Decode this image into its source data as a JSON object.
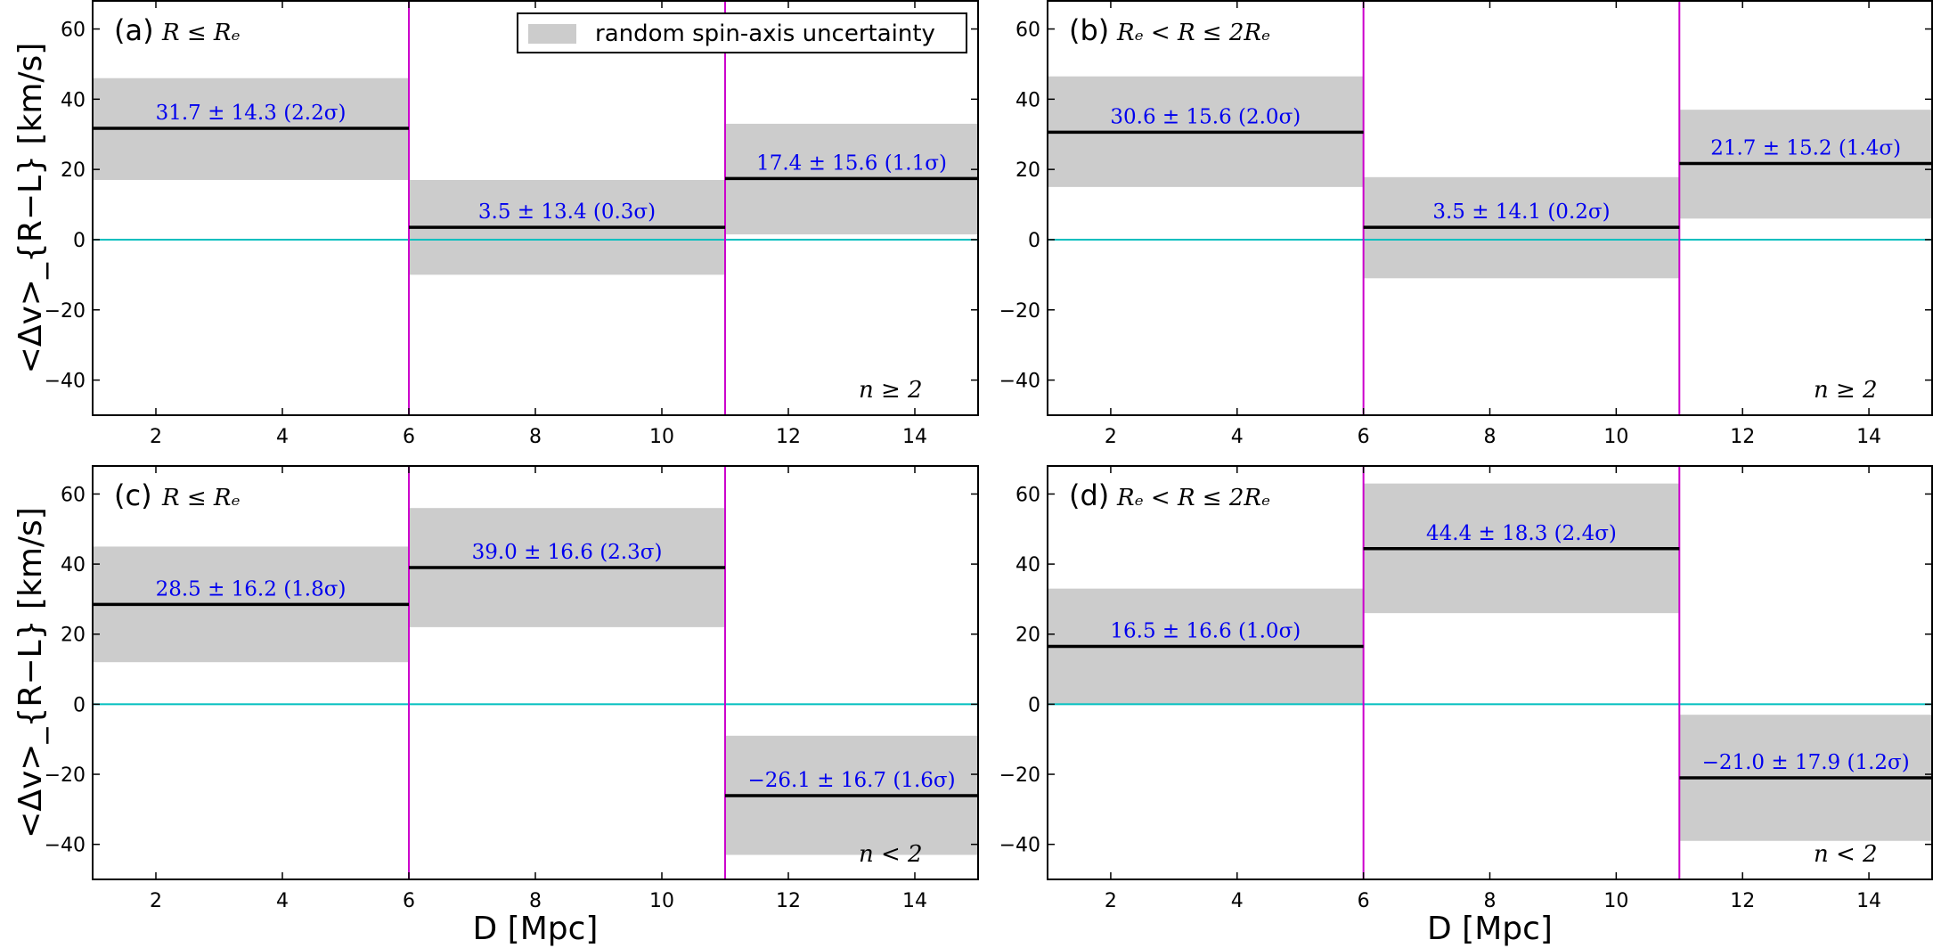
{
  "chart_data": [
    {
      "type": "bar",
      "panel": "(a)",
      "condition": "R ≤ Rₑ",
      "sample": "n ≥ 2",
      "xlim": [
        1,
        15
      ],
      "ylim": [
        -50,
        68
      ],
      "xticks": [
        2,
        4,
        6,
        8,
        10,
        12,
        14
      ],
      "yticks": [
        -40,
        -20,
        0,
        20,
        40,
        60
      ],
      "xlabel": "",
      "ylabel": "<Δv>_{R−L} [km/s]",
      "legend_label": "random spin-axis uncertainty",
      "legend_position": "top-right",
      "bin_edges": [
        6,
        11
      ],
      "bins": [
        {
          "x0": 1,
          "x1": 6,
          "value": 31.7,
          "band": [
            17.0,
            46.0
          ],
          "label": "31.7 ± 14.3 (2.2σ)"
        },
        {
          "x0": 6,
          "x1": 11,
          "value": 3.5,
          "band": [
            -10.0,
            17.0
          ],
          "label": "3.5 ± 13.4 (0.3σ)"
        },
        {
          "x0": 11,
          "x1": 15,
          "value": 17.4,
          "band": [
            1.5,
            33.0
          ],
          "label": "17.4 ± 15.6 (1.1σ)"
        }
      ]
    },
    {
      "type": "bar",
      "panel": "(b)",
      "condition": "Rₑ < R ≤ 2Rₑ",
      "sample": "n ≥ 2",
      "xlim": [
        1,
        15
      ],
      "ylim": [
        -50,
        68
      ],
      "xticks": [
        2,
        4,
        6,
        8,
        10,
        12,
        14
      ],
      "yticks": [
        -40,
        -20,
        0,
        20,
        40,
        60
      ],
      "xlabel": "",
      "ylabel": "",
      "bin_edges": [
        6,
        11
      ],
      "bins": [
        {
          "x0": 1,
          "x1": 6,
          "value": 30.6,
          "band": [
            15.0,
            46.5
          ],
          "label": "30.6 ± 15.6 (2.0σ)"
        },
        {
          "x0": 6,
          "x1": 11,
          "value": 3.5,
          "band": [
            -11.0,
            17.8
          ],
          "label": "3.5 ± 14.1 (0.2σ)"
        },
        {
          "x0": 11,
          "x1": 15,
          "value": 21.7,
          "band": [
            6.0,
            37.0
          ],
          "label": "21.7 ± 15.2 (1.4σ)"
        }
      ]
    },
    {
      "type": "bar",
      "panel": "(c)",
      "condition": "R ≤ Rₑ",
      "sample": "n < 2",
      "xlim": [
        1,
        15
      ],
      "ylim": [
        -50,
        68
      ],
      "xticks": [
        2,
        4,
        6,
        8,
        10,
        12,
        14
      ],
      "yticks": [
        -40,
        -20,
        0,
        20,
        40,
        60
      ],
      "xlabel": "D [Mpc]",
      "ylabel": "<Δv>_{R−L} [km/s]",
      "bin_edges": [
        6,
        11
      ],
      "bins": [
        {
          "x0": 1,
          "x1": 6,
          "value": 28.5,
          "band": [
            12.0,
            45.0
          ],
          "label": "28.5 ± 16.2 (1.8σ)"
        },
        {
          "x0": 6,
          "x1": 11,
          "value": 39.0,
          "band": [
            22.0,
            56.0
          ],
          "label": "39.0 ± 16.6 (2.3σ)"
        },
        {
          "x0": 11,
          "x1": 15,
          "value": -26.1,
          "band": [
            -43.0,
            -9.0
          ],
          "label": "−26.1 ± 16.7 (1.6σ)"
        }
      ]
    },
    {
      "type": "bar",
      "panel": "(d)",
      "condition": "Rₑ < R ≤ 2Rₑ",
      "sample": "n < 2",
      "xlim": [
        1,
        15
      ],
      "ylim": [
        -50,
        68
      ],
      "xticks": [
        2,
        4,
        6,
        8,
        10,
        12,
        14
      ],
      "yticks": [
        -40,
        -20,
        0,
        20,
        40,
        60
      ],
      "xlabel": "D [Mpc]",
      "ylabel": "",
      "bin_edges": [
        6,
        11
      ],
      "bins": [
        {
          "x0": 1,
          "x1": 6,
          "value": 16.5,
          "band": [
            0.0,
            33.0
          ],
          "label": "16.5 ± 16.6 (1.0σ)"
        },
        {
          "x0": 6,
          "x1": 11,
          "value": 44.4,
          "band": [
            26.0,
            63.0
          ],
          "label": "44.4 ± 18.3 (2.4σ)"
        },
        {
          "x0": 11,
          "x1": 15,
          "value": -21.0,
          "band": [
            -39.0,
            -3.0
          ],
          "label": "−21.0 ± 17.9 (1.2σ)"
        }
      ]
    }
  ],
  "colors": {
    "band": "#cccccc",
    "mean_line": "#000000",
    "bin_edge": "#cc00cc",
    "zero_line": "#00bfbf",
    "bin_label": "#0000ee"
  }
}
